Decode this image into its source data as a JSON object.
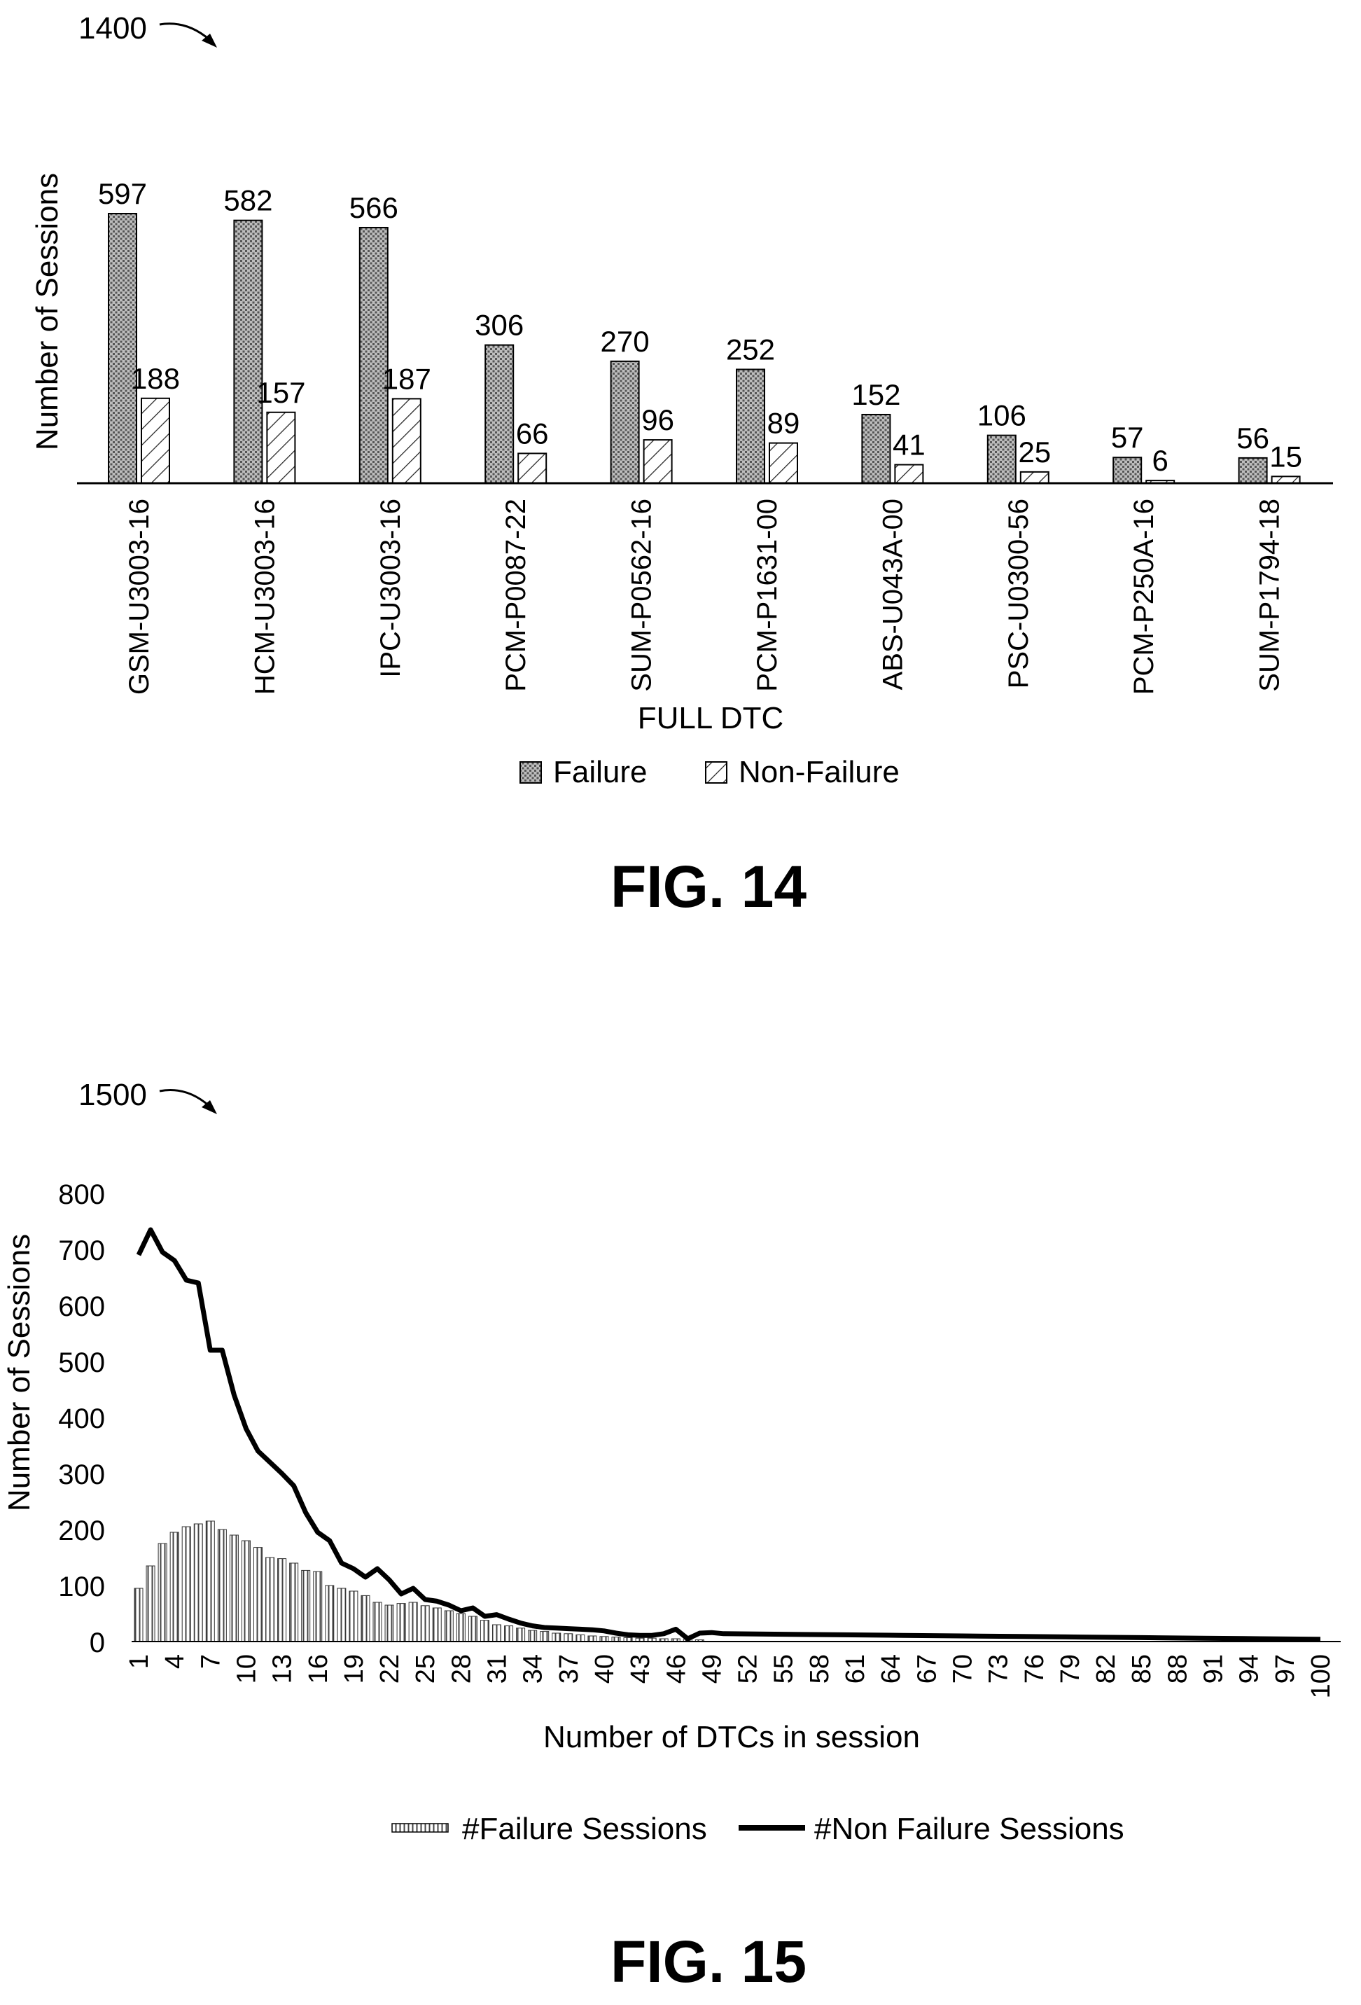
{
  "chart_data": [
    {
      "type": "bar",
      "ref_numeral": "1400",
      "figure_label": "FIG. 14",
      "categories": [
        "GSM-U3003-16",
        "HCM-U3003-16",
        "IPC-U3003-16",
        "PCM-P0087-22",
        "SUM-P0562-16",
        "PCM-P1631-00",
        "ABS-U043A-00",
        "PSC-U0300-56",
        "PCM-P250A-16",
        "SUM-P1794-18"
      ],
      "series": [
        {
          "name": "Failure",
          "values": [
            597,
            582,
            566,
            306,
            270,
            252,
            152,
            106,
            57,
            56
          ],
          "pattern": "dots"
        },
        {
          "name": "Non-Failure",
          "values": [
            188,
            157,
            187,
            66,
            96,
            89,
            41,
            25,
            6,
            15
          ],
          "pattern": "hatch"
        }
      ],
      "xlabel": "FULL DTC",
      "ylabel": "Number of Sessions",
      "ylim": [
        0,
        640
      ],
      "legend_position": "bottom",
      "grid": false
    },
    {
      "type": "bar+line",
      "ref_numeral": "1500",
      "figure_label": "FIG. 15",
      "x_tick_labels": [
        "1",
        "4",
        "7",
        "10",
        "13",
        "16",
        "19",
        "22",
        "25",
        "28",
        "31",
        "34",
        "37",
        "40",
        "43",
        "46",
        "49",
        "52",
        "55",
        "58",
        "61",
        "64",
        "67",
        "70",
        "73",
        "76",
        "79",
        "82",
        "85",
        "88",
        "91",
        "94",
        "97",
        "100"
      ],
      "y_tick_labels": [
        "0",
        "100",
        "200",
        "300",
        "400",
        "500",
        "600",
        "700",
        "800"
      ],
      "xlabel": "Number of DTCs in session",
      "ylabel": "Number of Sessions",
      "xlim": [
        1,
        100
      ],
      "ylim": [
        0,
        800
      ],
      "legend_position": "bottom",
      "grid": false,
      "series": [
        {
          "name": "#Failure Sessions",
          "type": "bar",
          "x": [
            1,
            2,
            3,
            4,
            5,
            6,
            7,
            8,
            9,
            10,
            11,
            12,
            13,
            14,
            15,
            16,
            17,
            18,
            19,
            20,
            21,
            22,
            23,
            24,
            25,
            26,
            27,
            28,
            29,
            30,
            31,
            32,
            33,
            34,
            35,
            36,
            37,
            38,
            39,
            40,
            41,
            42,
            43,
            44,
            45,
            46,
            47,
            48
          ],
          "values": [
            95,
            135,
            175,
            195,
            205,
            210,
            215,
            200,
            190,
            180,
            168,
            150,
            148,
            140,
            127,
            125,
            100,
            95,
            90,
            82,
            70,
            65,
            68,
            70,
            64,
            60,
            55,
            50,
            45,
            38,
            30,
            28,
            24,
            20,
            18,
            15,
            14,
            12,
            10,
            9,
            8,
            7,
            6,
            6,
            5,
            5,
            4,
            3
          ]
        },
        {
          "name": "#Non Failure Sessions",
          "type": "line",
          "x": [
            1,
            2,
            3,
            4,
            5,
            6,
            7,
            8,
            9,
            10,
            11,
            12,
            13,
            14,
            15,
            16,
            17,
            18,
            19,
            20,
            21,
            22,
            23,
            24,
            25,
            26,
            27,
            28,
            29,
            30,
            31,
            32,
            33,
            34,
            35,
            36,
            37,
            38,
            39,
            40,
            41,
            42,
            43,
            44,
            45,
            46,
            47,
            48,
            49,
            50,
            55,
            60,
            65,
            70,
            75,
            80,
            85,
            90,
            95,
            100
          ],
          "values": [
            690,
            735,
            695,
            680,
            645,
            640,
            520,
            520,
            440,
            380,
            340,
            320,
            300,
            278,
            230,
            195,
            180,
            140,
            130,
            115,
            130,
            110,
            85,
            95,
            75,
            72,
            65,
            55,
            60,
            45,
            48,
            40,
            33,
            28,
            25,
            24,
            23,
            22,
            21,
            19,
            15,
            12,
            11,
            11,
            14,
            22,
            5,
            15,
            16,
            14,
            13,
            12,
            11,
            10,
            9,
            8,
            7,
            6,
            5,
            4
          ]
        }
      ]
    }
  ]
}
